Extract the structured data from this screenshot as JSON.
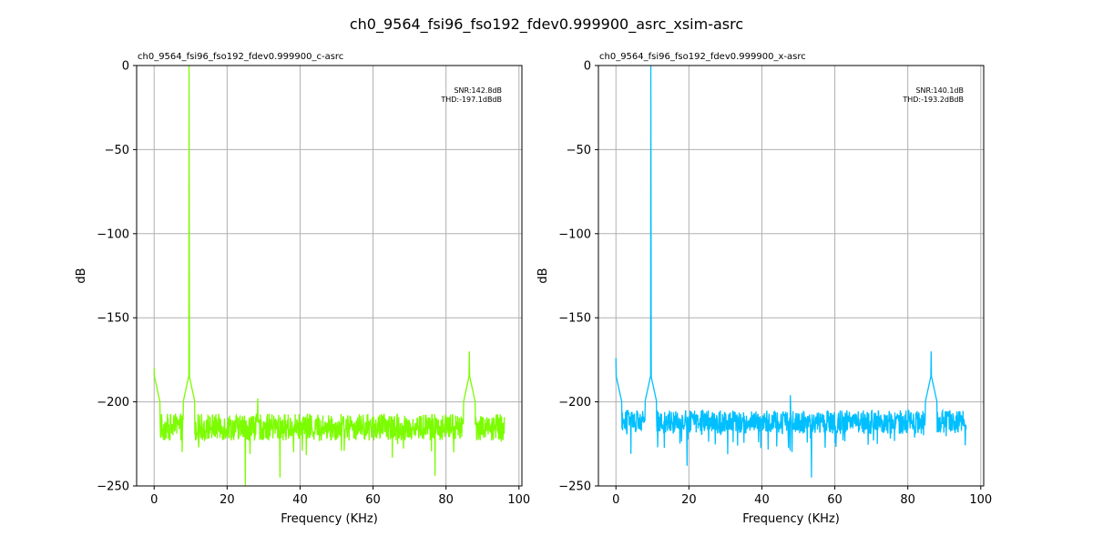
{
  "figure_title": "ch0_9564_fsi96_fso192_fdev0.999900_asrc_xsim-asrc",
  "chart_data": [
    {
      "type": "line",
      "title": "ch0_9564_fsi96_fso192_fdev0.999900_c-asrc",
      "xlabel": "Frequency (KHz)",
      "ylabel": "dB",
      "xlim": [
        -4.8,
        100.8
      ],
      "ylim": [
        -250,
        0
      ],
      "xticks": [
        0,
        20,
        40,
        60,
        80,
        100
      ],
      "yticks": [
        0,
        -50,
        -100,
        -150,
        -200,
        -250
      ],
      "ytick_labels": [
        "0",
        "−50",
        "−100",
        "−150",
        "−200",
        "−250"
      ],
      "grid": true,
      "annotation": [
        "SNR:142.8dB",
        "THD:-197.1dBdB"
      ],
      "series": [
        {
          "color": "#7cfc00",
          "noise_floor_db": -215,
          "noise_spread_db": 8,
          "x_range": [
            0,
            96
          ],
          "peaks": [
            {
              "x": 0.0,
              "y": -180
            },
            {
              "x": 9.564,
              "y": 0
            },
            {
              "x": 25.0,
              "y": -250
            },
            {
              "x": 28.4,
              "y": -198
            },
            {
              "x": 34.5,
              "y": -245
            },
            {
              "x": 86.4,
              "y": -170
            },
            {
              "x": 77.0,
              "y": -244
            }
          ]
        }
      ]
    },
    {
      "type": "line",
      "title": "ch0_9564_fsi96_fso192_fdev0.999900_x-asrc",
      "xlabel": "Frequency (KHz)",
      "ylabel": "dB",
      "xlim": [
        -4.8,
        100.8
      ],
      "ylim": [
        -250,
        0
      ],
      "xticks": [
        0,
        20,
        40,
        60,
        80,
        100
      ],
      "yticks": [
        0,
        -50,
        -100,
        -150,
        -200,
        -250
      ],
      "ytick_labels": [
        "0",
        "−50",
        "−100",
        "−150",
        "−200",
        "−250"
      ],
      "grid": true,
      "annotation": [
        "SNR:140.1dB",
        "THD:-193.2dBdB"
      ],
      "series": [
        {
          "color": "#00bfff",
          "noise_floor_db": -212,
          "noise_spread_db": 7,
          "x_range": [
            0,
            96
          ],
          "peaks": [
            {
              "x": 0.0,
              "y": -174
            },
            {
              "x": 9.564,
              "y": 0
            },
            {
              "x": 47.8,
              "y": -196
            },
            {
              "x": 53.6,
              "y": -245
            },
            {
              "x": 86.4,
              "y": -170
            },
            {
              "x": 19.5,
              "y": -238
            }
          ]
        }
      ]
    }
  ]
}
